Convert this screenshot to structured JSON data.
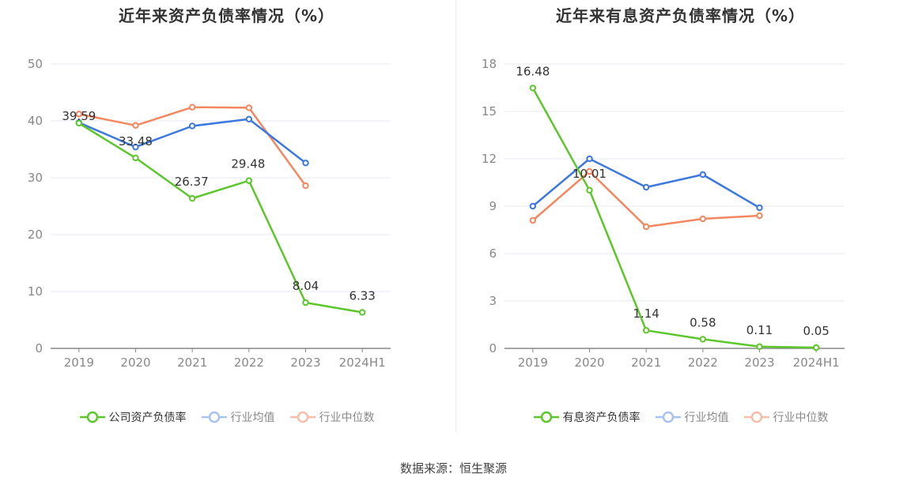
{
  "source_label": "数据来源：恒生聚源",
  "chart_data": [
    {
      "type": "line",
      "title": "近年来资产负债率情况（%）",
      "categories": [
        "2019",
        "2020",
        "2021",
        "2022",
        "2023",
        "2024H1"
      ],
      "ylim": [
        0,
        50
      ],
      "yticks": [
        0,
        10,
        20,
        30,
        40,
        50
      ],
      "grid": true,
      "legend_position": "bottom",
      "series": [
        {
          "name": "公司资产负债率",
          "color": "#5cc72a",
          "values": [
            39.59,
            33.48,
            26.37,
            29.48,
            8.04,
            6.33
          ],
          "labels": [
            "39.59",
            "33.48",
            "26.37",
            "29.48",
            "8.04",
            "6.33"
          ]
        },
        {
          "name": "行业均值",
          "color": "#3b78e0",
          "values": [
            39.7,
            35.4,
            39.1,
            40.3,
            32.6,
            null
          ],
          "labels": []
        },
        {
          "name": "行业中位数",
          "color": "#f4875f",
          "values": [
            41.2,
            39.2,
            42.4,
            42.3,
            28.6,
            null
          ],
          "labels": []
        }
      ]
    },
    {
      "type": "line",
      "title": "近年来有息资产负债率情况（%）",
      "categories": [
        "2019",
        "2020",
        "2021",
        "2022",
        "2023",
        "2024H1"
      ],
      "ylim": [
        0,
        18
      ],
      "yticks": [
        0,
        3,
        6,
        9,
        12,
        15,
        18
      ],
      "grid": true,
      "legend_position": "bottom",
      "series": [
        {
          "name": "有息资产负债率",
          "color": "#5cc72a",
          "values": [
            16.48,
            10.01,
            1.14,
            0.58,
            0.11,
            0.05
          ],
          "labels": [
            "16.48",
            "10.01",
            "1.14",
            "0.58",
            "0.11",
            "0.05"
          ]
        },
        {
          "name": "行业均值",
          "color": "#3b78e0",
          "values": [
            9.0,
            12.0,
            10.2,
            11.0,
            8.9,
            null
          ],
          "labels": []
        },
        {
          "name": "行业中位数",
          "color": "#f4875f",
          "values": [
            8.1,
            11.2,
            7.7,
            8.2,
            8.4,
            null
          ],
          "labels": []
        }
      ]
    }
  ]
}
